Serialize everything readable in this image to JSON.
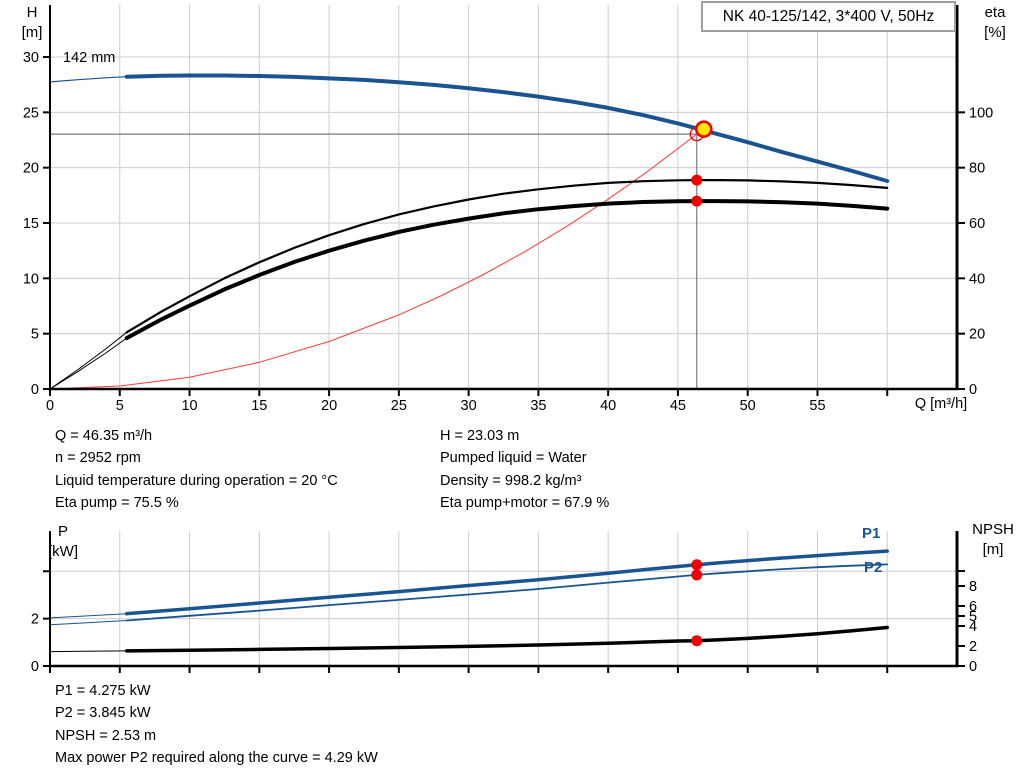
{
  "colors": {
    "curve_blue": "#1a5490",
    "curve_black": "#000000",
    "marker_red": "#f40000",
    "affinity_red": "#fb3b3b",
    "duty_yellow": "#ffe600",
    "duty_line_gray": "#7a7a7a",
    "grid_gray": "#cccccc",
    "axis_black": "#000000"
  },
  "title_box": {
    "label": "NK 40-125/142, 3*400 V, 50Hz"
  },
  "impeller_label": "142 mm",
  "axis_labels": {
    "top_left_1": "H",
    "top_left_2": "[m]",
    "top_right_1": "eta",
    "top_right_2": "[%]",
    "top_x": "Q [m³/h]",
    "bottom_left_1": "P",
    "bottom_left_2": "[kW]",
    "bottom_right_1": "NPSH",
    "bottom_right_2": "[m]"
  },
  "curve_labels": {
    "p1": "P1",
    "p2": "P2"
  },
  "info_left": [
    "Q = 46.35 m³/h",
    "n = 2952 rpm",
    "Liquid temperature during operation = 20 °C",
    "Eta pump = 75.5 %"
  ],
  "info_right": [
    "H = 23.03 m",
    "Pumped liquid = Water",
    "Density = 998.2 kg/m³",
    "Eta pump+motor = 67.9 %"
  ],
  "footer": [
    "P1 = 4.275 kW",
    "P2 = 3.845 kW",
    "NPSH = 2.53 m",
    "Max power P2 required along the curve = 4.29 kW"
  ],
  "chart_data": [
    {
      "type": "line",
      "title": "NK 40-125/142, 3*400 V, 50Hz",
      "xlabel": "Q [m³/h]",
      "xlim": [
        0,
        65
      ],
      "x_ticks": [
        0,
        5,
        10,
        15,
        20,
        25,
        30,
        35,
        40,
        45,
        50,
        55
      ],
      "x_unlabeled_ticks": [
        60
      ],
      "grid_x": [
        5,
        10,
        15,
        20,
        25,
        30,
        35,
        40,
        45,
        50,
        55,
        60
      ],
      "y_left": {
        "label": "H [m]",
        "lim": [
          0,
          34.7
        ],
        "ticks": [
          0,
          5,
          10,
          15,
          20,
          25,
          30
        ],
        "unlabeled_ticks": []
      },
      "y_right": {
        "label": "eta [%]",
        "lim": [
          0,
          138.8
        ],
        "ticks": [
          0,
          20,
          40,
          60,
          80,
          100
        ],
        "unlabeled_ticks": []
      },
      "grid_y_left": [
        5,
        10,
        15,
        20,
        25,
        30
      ],
      "series": [
        {
          "name": "affinity-parabola",
          "color": "affinity_red",
          "width": 1,
          "axis": "left",
          "points": [
            [
              0,
              0
            ],
            [
              5,
              0.27
            ],
            [
              10,
              1.07
            ],
            [
              15,
              2.41
            ],
            [
              20,
              4.29
            ],
            [
              25,
              6.7
            ],
            [
              28,
              8.4
            ],
            [
              31,
              10.3
            ],
            [
              34,
              12.39
            ],
            [
              37,
              14.67
            ],
            [
              40,
              17.15
            ],
            [
              43,
              19.82
            ],
            [
              46.35,
              23.03
            ]
          ]
        },
        {
          "name": "qh-curve-lead",
          "color": "curve_blue",
          "width": 1.2,
          "axis": "left",
          "points": [
            [
              0,
              27.75
            ],
            [
              2,
              27.95
            ],
            [
              4,
              28.12
            ],
            [
              5.5,
              28.22
            ]
          ]
        },
        {
          "name": "qh-curve",
          "color": "curve_blue",
          "width": 4,
          "axis": "left",
          "points": [
            [
              5.5,
              28.22
            ],
            [
              8,
              28.3
            ],
            [
              10,
              28.33
            ],
            [
              12.5,
              28.33
            ],
            [
              15,
              28.28
            ],
            [
              17.5,
              28.2
            ],
            [
              20,
              28.07
            ],
            [
              22.5,
              27.93
            ],
            [
              25,
              27.72
            ],
            [
              27.5,
              27.48
            ],
            [
              30,
              27.18
            ],
            [
              32.5,
              26.83
            ],
            [
              35,
              26.42
            ],
            [
              37.5,
              25.95
            ],
            [
              40,
              25.4
            ],
            [
              42.5,
              24.75
            ],
            [
              45,
              24.0
            ],
            [
              46.35,
              23.55
            ],
            [
              47.5,
              23.15
            ],
            [
              50,
              22.3
            ],
            [
              52.5,
              21.4
            ],
            [
              55,
              20.55
            ],
            [
              57.5,
              19.7
            ],
            [
              60,
              18.8
            ]
          ]
        },
        {
          "name": "eta-pump-curve-lead",
          "color": "curve_black",
          "width": 1,
          "axis": "right",
          "points": [
            [
              0,
              0
            ],
            [
              2,
              7
            ],
            [
              4,
              14.5
            ],
            [
              5.5,
              20.5
            ]
          ]
        },
        {
          "name": "eta-pump-curve",
          "color": "curve_black",
          "width": 2.2,
          "axis": "right",
          "points": [
            [
              5.5,
              20.5
            ],
            [
              8,
              28
            ],
            [
              10,
              33.5
            ],
            [
              12.5,
              40
            ],
            [
              15,
              45.8
            ],
            [
              17.5,
              51
            ],
            [
              20,
              55.6
            ],
            [
              22.5,
              59.6
            ],
            [
              25,
              63.1
            ],
            [
              27.5,
              66
            ],
            [
              30,
              68.5
            ],
            [
              32.5,
              70.6
            ],
            [
              35,
              72.2
            ],
            [
              37.5,
              73.5
            ],
            [
              40,
              74.5
            ],
            [
              42.5,
              75.1
            ],
            [
              45,
              75.45
            ],
            [
              46.35,
              75.5
            ],
            [
              48,
              75.5
            ],
            [
              50,
              75.4
            ],
            [
              52.5,
              75.05
            ],
            [
              55,
              74.5
            ],
            [
              57.5,
              73.7
            ],
            [
              60,
              72.7
            ]
          ]
        },
        {
          "name": "eta-pump-motor-curve-lead",
          "color": "curve_black",
          "width": 1,
          "axis": "right",
          "points": [
            [
              0,
              0
            ],
            [
              2,
              6.3
            ],
            [
              4,
              13
            ],
            [
              5.5,
              18.4
            ]
          ]
        },
        {
          "name": "eta-pump-motor-curve",
          "color": "curve_black",
          "width": 4,
          "axis": "right",
          "points": [
            [
              5.5,
              18.4
            ],
            [
              8,
              25.2
            ],
            [
              10,
              30.1
            ],
            [
              12.5,
              36
            ],
            [
              15,
              41.2
            ],
            [
              17.5,
              45.9
            ],
            [
              20,
              50
            ],
            [
              22.5,
              53.6
            ],
            [
              25,
              56.8
            ],
            [
              27.5,
              59.4
            ],
            [
              30,
              61.6
            ],
            [
              32.5,
              63.5
            ],
            [
              35,
              65
            ],
            [
              37.5,
              66.1
            ],
            [
              40,
              67
            ],
            [
              42.5,
              67.6
            ],
            [
              45,
              67.87
            ],
            [
              46.35,
              67.9
            ],
            [
              48,
              67.9
            ],
            [
              50,
              67.8
            ],
            [
              52.5,
              67.5
            ],
            [
              55,
              67
            ],
            [
              57.5,
              66.2
            ],
            [
              60,
              65.2
            ]
          ]
        }
      ],
      "duty_point": {
        "q": 46.35,
        "h": 23.03,
        "show_lines": true,
        "marker": "yellow-circle",
        "dots": [
          {
            "axis": "right",
            "value": 75.5
          },
          {
            "axis": "right",
            "value": 67.9
          }
        ]
      }
    },
    {
      "type": "line",
      "title": "",
      "xlabel": "",
      "xlim": [
        0,
        65
      ],
      "x_ticks": [],
      "x_unlabeled_ticks": [
        0,
        5,
        10,
        15,
        20,
        25,
        30,
        35,
        40,
        45,
        50,
        55,
        60
      ],
      "grid_x": [
        5,
        10,
        15,
        20,
        25,
        30,
        35,
        40,
        45,
        50,
        55,
        60
      ],
      "y_left": {
        "label": "P [kW]",
        "lim": [
          0,
          5.7
        ],
        "ticks": [
          0,
          2
        ],
        "unlabeled_ticks": [
          4
        ]
      },
      "y_right": {
        "label": "NPSH [m]",
        "lim": [
          0,
          13.5
        ],
        "ticks": [
          0,
          2,
          4,
          5,
          6,
          8
        ],
        "unlabeled_ticks": [
          9.5
        ]
      },
      "grid_y_left": [
        2,
        4
      ],
      "series": [
        {
          "name": "p1-curve-lead",
          "color": "curve_blue",
          "width": 1,
          "axis": "left",
          "points": [
            [
              0,
              2.03
            ],
            [
              2.5,
              2.11
            ],
            [
              5.5,
              2.21
            ]
          ]
        },
        {
          "name": "p1-curve",
          "color": "curve_blue",
          "width": 3.5,
          "axis": "left",
          "points": [
            [
              5.5,
              2.21
            ],
            [
              10,
              2.42
            ],
            [
              15,
              2.66
            ],
            [
              20,
              2.9
            ],
            [
              25,
              3.14
            ],
            [
              30,
              3.4
            ],
            [
              35,
              3.64
            ],
            [
              40,
              3.92
            ],
            [
              42.5,
              4.06
            ],
            [
              45,
              4.2
            ],
            [
              46.35,
              4.275
            ],
            [
              48,
              4.36
            ],
            [
              50,
              4.45
            ],
            [
              52.5,
              4.56
            ],
            [
              55,
              4.66
            ],
            [
              57.5,
              4.76
            ],
            [
              60,
              4.85
            ]
          ]
        },
        {
          "name": "p2-curve-lead",
          "color": "curve_blue",
          "width": 1,
          "axis": "left",
          "points": [
            [
              0,
              1.74
            ],
            [
              2.5,
              1.82
            ],
            [
              5.5,
              1.92
            ]
          ]
        },
        {
          "name": "p2-curve",
          "color": "curve_blue",
          "width": 1.8,
          "axis": "left",
          "points": [
            [
              5.5,
              1.92
            ],
            [
              10,
              2.12
            ],
            [
              15,
              2.34
            ],
            [
              20,
              2.57
            ],
            [
              25,
              2.79
            ],
            [
              30,
              3.02
            ],
            [
              35,
              3.25
            ],
            [
              40,
              3.52
            ],
            [
              42.5,
              3.65
            ],
            [
              45,
              3.78
            ],
            [
              46.35,
              3.845
            ],
            [
              48,
              3.92
            ],
            [
              50,
              4.0
            ],
            [
              52.5,
              4.09
            ],
            [
              55,
              4.17
            ],
            [
              57.5,
              4.235
            ],
            [
              60,
              4.29
            ]
          ]
        },
        {
          "name": "npsh-curve-lead",
          "color": "curve_black",
          "width": 1,
          "axis": "right",
          "points": [
            [
              0,
              1.44
            ],
            [
              2.5,
              1.47
            ],
            [
              5.5,
              1.51
            ]
          ]
        },
        {
          "name": "npsh-curve",
          "color": "curve_black",
          "width": 3.5,
          "axis": "right",
          "points": [
            [
              5.5,
              1.51
            ],
            [
              10,
              1.58
            ],
            [
              15,
              1.66
            ],
            [
              20,
              1.75
            ],
            [
              25,
              1.85
            ],
            [
              30,
              1.96
            ],
            [
              35,
              2.1
            ],
            [
              40,
              2.28
            ],
            [
              42.5,
              2.39
            ],
            [
              45,
              2.5
            ],
            [
              46.35,
              2.53
            ],
            [
              48,
              2.62
            ],
            [
              50,
              2.76
            ],
            [
              52.5,
              2.98
            ],
            [
              55,
              3.22
            ],
            [
              57.5,
              3.52
            ],
            [
              60,
              3.85
            ]
          ]
        }
      ],
      "duty_point": {
        "q": 46.35,
        "show_lines": false,
        "dots": [
          {
            "axis": "left",
            "value": 4.275
          },
          {
            "axis": "left",
            "value": 3.845
          },
          {
            "axis": "right",
            "value": 2.53
          }
        ]
      }
    }
  ]
}
